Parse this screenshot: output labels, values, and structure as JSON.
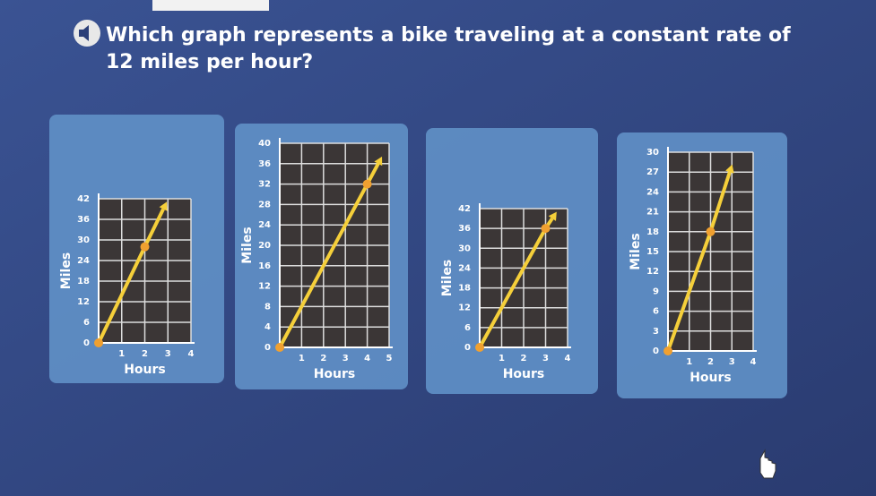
{
  "question": "Which graph represents a bike traveling at a constant rate of 12 miles per hour?",
  "chart_data": [
    {
      "type": "line",
      "x": [
        0,
        2,
        2.8
      ],
      "values": [
        0,
        28,
        39
      ],
      "color": "#f5cf3a",
      "xlim": [
        0,
        4
      ],
      "ylim": [
        0,
        42
      ],
      "xticks": [
        1,
        2,
        3,
        4
      ],
      "yticks": [
        0,
        6,
        12,
        18,
        24,
        30,
        36,
        42
      ],
      "xlabel": "Hours",
      "ylabel": "Miles",
      "grid": true
    },
    {
      "type": "line",
      "x": [
        0,
        4,
        4.5
      ],
      "values": [
        0,
        32,
        36
      ],
      "color": "#f5cf3a",
      "xlim": [
        0,
        5
      ],
      "ylim": [
        0,
        40
      ],
      "xticks": [
        1,
        2,
        3,
        4,
        5
      ],
      "yticks": [
        0,
        4,
        8,
        12,
        16,
        20,
        24,
        28,
        32,
        36,
        40
      ],
      "xlabel": "Hours",
      "ylabel": "Miles",
      "grid": true
    },
    {
      "type": "line",
      "x": [
        0,
        3,
        3.3
      ],
      "values": [
        0,
        36,
        39
      ],
      "color": "#f5cf3a",
      "xlim": [
        0,
        4
      ],
      "ylim": [
        0,
        42
      ],
      "xticks": [
        1,
        2,
        3,
        4
      ],
      "yticks": [
        0,
        6,
        12,
        18,
        24,
        30,
        36,
        42
      ],
      "xlabel": "Hours",
      "ylabel": "Miles",
      "grid": true
    },
    {
      "type": "line",
      "x": [
        0,
        2,
        2.9
      ],
      "values": [
        0,
        18,
        27
      ],
      "color": "#f5cf3a",
      "xlim": [
        0,
        4
      ],
      "ylim": [
        0,
        30
      ],
      "xticks": [
        1,
        2,
        3,
        4
      ],
      "yticks": [
        0,
        3,
        6,
        9,
        12,
        15,
        18,
        21,
        24,
        27,
        30
      ],
      "xlabel": "Hours",
      "ylabel": "Miles",
      "grid": true
    }
  ]
}
